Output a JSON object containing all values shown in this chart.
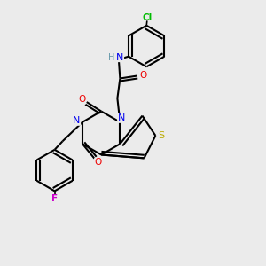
{
  "bg_color": "#ebebeb",
  "atom_colors": {
    "C": "#000000",
    "N": "#0000ee",
    "O": "#ee0000",
    "S": "#bbaa00",
    "Cl": "#00bb00",
    "F": "#cc00cc",
    "H": "#6699aa"
  },
  "bond_color": "#000000",
  "bond_width": 1.5
}
